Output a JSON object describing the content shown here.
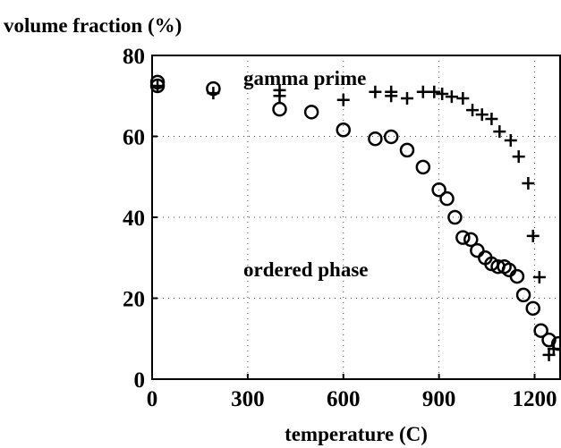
{
  "chart_data": {
    "type": "scatter",
    "ylabel": "volume fraction (%)",
    "xlabel": "temperature (C)",
    "xlim": [
      0,
      1280
    ],
    "ylim": [
      0,
      80
    ],
    "xticks": [
      0,
      300,
      600,
      900,
      1200
    ],
    "yticks": [
      0,
      20,
      40,
      60,
      80
    ],
    "grid": true,
    "series": [
      {
        "name": "gamma prime",
        "marker": "plus",
        "color": "#000000",
        "x": [
          17,
          192,
          400,
          400,
          600,
          700,
          750,
          750,
          800,
          850,
          885,
          910,
          940,
          975,
          1005,
          1035,
          1065,
          1090,
          1125,
          1150,
          1180,
          1195,
          1215,
          1245,
          1260
        ],
        "values": [
          72.5,
          70.7,
          71.4,
          70,
          69,
          71,
          71,
          70,
          69.4,
          71,
          71,
          70.5,
          69.8,
          69.4,
          66.5,
          65.4,
          64.3,
          61.2,
          59,
          55,
          48.4,
          35.4,
          25.2,
          6,
          7.5
        ]
      },
      {
        "name": "ordered phase",
        "marker": "circle",
        "color": "#000000",
        "x": [
          17,
          17,
          192,
          400,
          500,
          600,
          700,
          750,
          800,
          850,
          900,
          925,
          950,
          975,
          1000,
          1020,
          1045,
          1065,
          1085,
          1105,
          1120,
          1145,
          1165,
          1195,
          1220,
          1245,
          1275
        ],
        "values": [
          73.4,
          72.5,
          71.8,
          66.7,
          66,
          61.6,
          59.4,
          59.9,
          56.6,
          52.4,
          46.8,
          44.6,
          40,
          35,
          34.5,
          31.8,
          30,
          28.5,
          27.8,
          27.8,
          27,
          25.4,
          20.8,
          17.5,
          12,
          9.7,
          8.8
        ]
      }
    ]
  }
}
